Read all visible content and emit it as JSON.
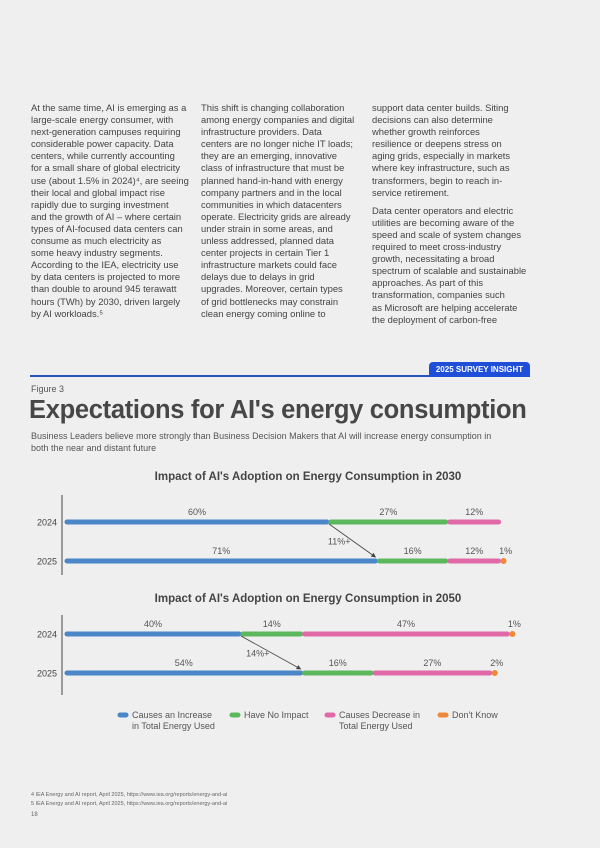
{
  "body_text": {
    "col1": [
      [
        "At the same time, AI is emerging as a",
        "large-scale energy consumer, with",
        "next-generation campuses requiring",
        "considerable power capacity. Data",
        "centers, while currently accounting",
        "for a small share of global electricity",
        "use (about 1.5% in 2024)⁴, are seeing",
        "their local and global impact rise",
        "rapidly due to surging investment",
        "and the growth of AI – where certain",
        "types of AI-focused data centers can",
        "consume as much electricity as",
        "some heavy industry segments.",
        "According to the IEA, electricity use",
        "by data centers is projected to more",
        "than double to around 945 terawatt",
        "hours (TWh) by 2030, driven largely",
        "by AI workloads.⁵"
      ]
    ],
    "col2": [
      [
        "This shift is changing collaboration",
        "among energy companies and digital",
        "infrastructure providers. Data",
        "centers are no longer niche IT loads;",
        "they are an emerging, innovative",
        "class of infrastructure that must be",
        "planned hand-in-hand with energy",
        "company partners and in the local",
        "communities in which datacenters",
        "operate. Electricity grids are already",
        "under strain in some areas, and",
        "unless addressed, planned data",
        "center projects in certain Tier 1",
        "infrastructure markets could face",
        "delays due to delays in grid",
        "upgrades. Moreover, certain types",
        "of grid bottlenecks may constrain",
        "clean energy coming online to"
      ]
    ],
    "col3": [
      [
        "support data center builds. Siting",
        "decisions can also determine",
        "whether growth reinforces",
        "resilience or deepens stress on",
        "aging grids, especially in markets",
        "where key infrastructure, such as",
        "transformers, begin to reach in-",
        "service retirement."
      ],
      [
        "Data center operators and electric",
        "utilities are becoming aware of the",
        "speed and scale of system changes",
        "required to meet cross-industry",
        "growth, necessitating a broad",
        "spectrum of scalable and sustainable",
        "approaches. As part of this",
        "transformation, companies such",
        "as Microsoft are helping accelerate",
        "the deployment of carbon-free"
      ]
    ]
  },
  "figure": {
    "badge": "2025 SURVEY INSIGHT",
    "label": "Figure 3",
    "title": "Expectations for AI's energy consumption",
    "subtitle": "Business Leaders believe more strongly than Business Decision Makers that AI will increase energy consumption in both the near and distant future"
  },
  "chart_data": [
    {
      "type": "bar",
      "stacked": true,
      "orientation": "horizontal",
      "title": "Impact of AI's Adoption on Energy Consumption in 2030",
      "categories": [
        "2024",
        "2025"
      ],
      "series": [
        {
          "name": "Causes an Increase in Total Energy Used",
          "values": [
            60,
            71
          ]
        },
        {
          "name": "Have No Impact",
          "values": [
            27,
            16
          ]
        },
        {
          "name": "Causes Decrease in Total Energy Used",
          "values": [
            12,
            12
          ]
        },
        {
          "name": "Don't Know",
          "values": [
            0,
            1
          ]
        }
      ],
      "annotation": "11%+"
    },
    {
      "type": "bar",
      "stacked": true,
      "orientation": "horizontal",
      "title": "Impact of AI's Adoption on Energy Consumption in 2050",
      "categories": [
        "2024",
        "2025"
      ],
      "series": [
        {
          "name": "Causes an Increase in Total Energy Used",
          "values": [
            40,
            54
          ]
        },
        {
          "name": "Have No Impact",
          "values": [
            14,
            16
          ]
        },
        {
          "name": "Causes Decrease in Total Energy Used",
          "values": [
            47,
            27
          ]
        },
        {
          "name": "Don't Know",
          "values": [
            1,
            2
          ]
        }
      ],
      "annotation": "14%+"
    }
  ],
  "legend": [
    {
      "lines": [
        "Causes an Increase",
        "in Total Energy Used"
      ],
      "color": "#4a86c8"
    },
    {
      "lines": [
        "Have No Impact"
      ],
      "color": "#5cb85c"
    },
    {
      "lines": [
        "Causes Decrease in",
        "Total Energy Used"
      ],
      "color": "#e06aa8"
    },
    {
      "lines": [
        "Don't Know"
      ],
      "color": "#f0883a"
    }
  ],
  "footnotes": [
    "4   IEA Energy and AI report, April 2025, https://www.iea.org/reports/energy-and-ai",
    "5   IEA Energy and AI report, April 2025, https://www.iea.org/reports/energy-and-ai"
  ],
  "page_number": "18"
}
